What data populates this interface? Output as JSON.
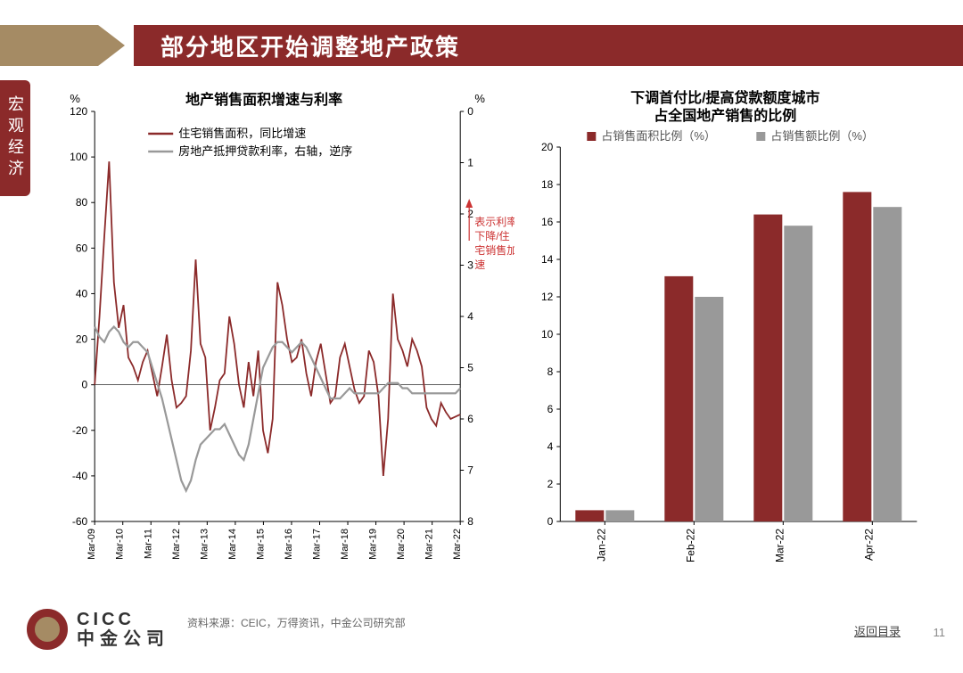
{
  "header": {
    "title": "部分地区开始调整地产政策",
    "side_tab": "宏观经济"
  },
  "footer": {
    "logo_en": "CICC",
    "logo_cn": "中金公司",
    "source": "资料来源：CEIC，万得资讯，中金公司研究部",
    "back_link": "返回目录",
    "page_num": "11"
  },
  "line_chart": {
    "type": "dual-axis-line",
    "title": "地产销售面积增速与利率",
    "left_unit": "%",
    "right_unit": "%",
    "legend": {
      "series1": "住宅销售面积，同比增速",
      "series2": "房地产抵押贷款利率，右轴，逆序"
    },
    "annotation": "表示利率下降/住宅销售加速",
    "annotation_color": "#cc3333",
    "x_labels": [
      "Mar-09",
      "Mar-10",
      "Mar-11",
      "Mar-12",
      "Mar-13",
      "Mar-14",
      "Mar-15",
      "Mar-16",
      "Mar-17",
      "Mar-18",
      "Mar-19",
      "Mar-20",
      "Mar-21",
      "Mar-22"
    ],
    "left_axis": {
      "min": -60,
      "max": 120,
      "step": 20
    },
    "right_axis": {
      "min": 0,
      "max": 8,
      "step": 1,
      "reversed": true
    },
    "series1_color": "#8b2a2a",
    "series2_color": "#999999",
    "line_width": 1.8,
    "series1_data": [
      0,
      30,
      65,
      98,
      45,
      25,
      35,
      12,
      8,
      2,
      10,
      15,
      5,
      -5,
      8,
      22,
      2,
      -10,
      -8,
      -5,
      15,
      55,
      18,
      12,
      -20,
      -10,
      2,
      5,
      30,
      18,
      0,
      -10,
      10,
      -5,
      15,
      -20,
      -30,
      -15,
      45,
      35,
      20,
      10,
      12,
      20,
      5,
      -5,
      10,
      18,
      5,
      -8,
      -5,
      12,
      18,
      8,
      -2,
      -8,
      -5,
      15,
      10,
      -5,
      -40,
      -15,
      40,
      20,
      15,
      8,
      20,
      15,
      8,
      -10,
      -15,
      -18,
      -8,
      -12,
      -15,
      -14,
      -13
    ],
    "series2_data": [
      4.2,
      4.4,
      4.5,
      4.3,
      4.2,
      4.3,
      4.5,
      4.6,
      4.5,
      4.5,
      4.6,
      4.7,
      5.0,
      5.3,
      5.6,
      6.0,
      6.4,
      6.8,
      7.2,
      7.4,
      7.2,
      6.8,
      6.5,
      6.4,
      6.3,
      6.2,
      6.2,
      6.1,
      6.3,
      6.5,
      6.7,
      6.8,
      6.5,
      6.0,
      5.5,
      5.0,
      4.8,
      4.6,
      4.5,
      4.5,
      4.6,
      4.7,
      4.6,
      4.5,
      4.6,
      4.8,
      5.0,
      5.2,
      5.4,
      5.6,
      5.6,
      5.6,
      5.5,
      5.4,
      5.5,
      5.5,
      5.5,
      5.5,
      5.5,
      5.5,
      5.4,
      5.3,
      5.3,
      5.3,
      5.4,
      5.4,
      5.5,
      5.5,
      5.5,
      5.5,
      5.5,
      5.5,
      5.5,
      5.5,
      5.5,
      5.5,
      5.4
    ]
  },
  "bar_chart": {
    "type": "grouped-bar",
    "title_line1": "下调首付比/提高贷款额度城市",
    "title_line2": "占全国地产销售的比例",
    "legend": {
      "series1": "占销售面积比例（%）",
      "series2": "占销售额比例（%）"
    },
    "series1_color": "#8b2a2a",
    "series2_color": "#999999",
    "y_axis": {
      "min": 0,
      "max": 20,
      "step": 2
    },
    "categories": [
      "Jan-22",
      "Feb-22",
      "Mar-22",
      "Apr-22"
    ],
    "series1_data": [
      0.6,
      13.1,
      16.4,
      17.6
    ],
    "series2_data": [
      0.6,
      12.0,
      15.8,
      16.8
    ],
    "bar_width": 0.32
  },
  "colors": {
    "header_bg": "#8b2a2a",
    "accent": "#a58b64",
    "grid": "#cccccc",
    "text": "#000000"
  }
}
